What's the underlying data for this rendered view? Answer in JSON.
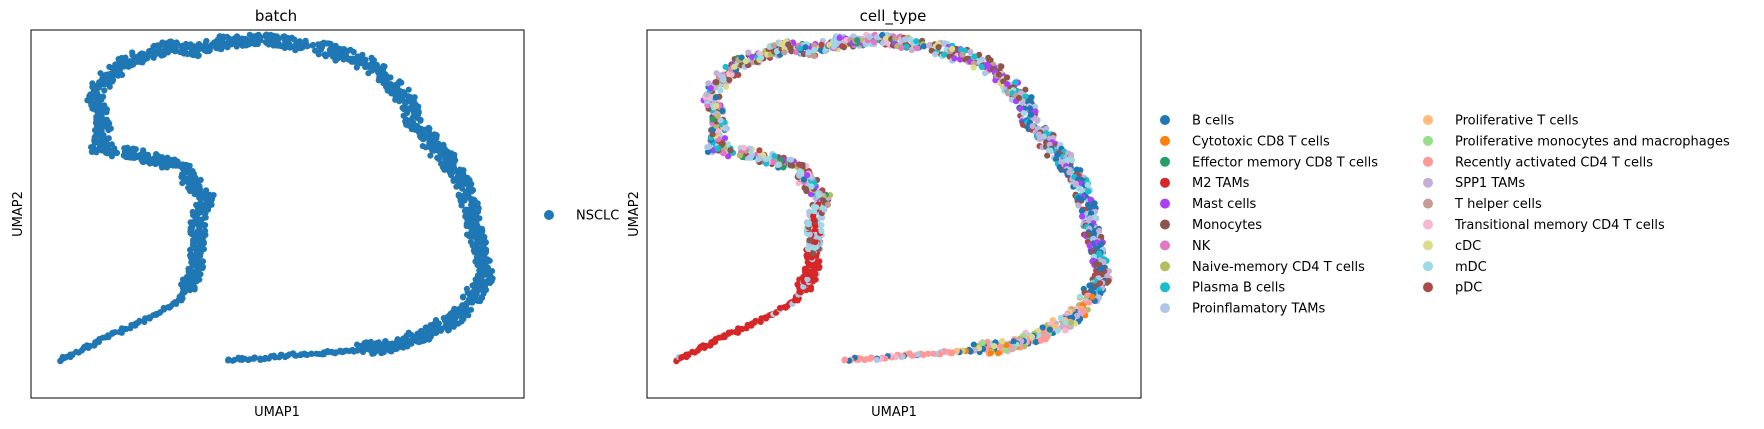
{
  "chart_data": [
    {
      "type": "scatter",
      "title": "batch",
      "xlabel": "UMAP1",
      "ylabel": "UMAP2",
      "legend_placement": "right",
      "xlim": [
        -9,
        9
      ],
      "ylim": [
        -9,
        9
      ],
      "grid": false,
      "series": [
        {
          "name": "NSCLC",
          "color": "#1f77b4"
        }
      ],
      "shape": {
        "left_branch": [
          [
            -8.0,
            -7.2
          ],
          [
            -6.5,
            -6.2
          ],
          [
            -5.0,
            -5.3
          ],
          [
            -3.6,
            -4.3
          ],
          [
            -3.0,
            -3.0
          ],
          [
            -2.9,
            -1.5
          ],
          [
            -2.9,
            -0.2
          ],
          [
            -2.6,
            0.7
          ],
          [
            -3.2,
            1.6
          ],
          [
            -3.5,
            2.3
          ],
          [
            -5.2,
            2.9
          ],
          [
            -6.6,
            3.3
          ],
          [
            -6.3,
            4.4
          ],
          [
            -6.7,
            5.5
          ],
          [
            -6.4,
            6.5
          ],
          [
            -5.6,
            7.3
          ],
          [
            -4.8,
            7.8
          ],
          [
            -3.9,
            8.2
          ],
          [
            -3.0,
            8.0
          ],
          [
            -2.0,
            8.4
          ],
          [
            -1.0,
            8.5
          ],
          [
            0.0,
            8.5
          ],
          [
            0.9,
            8.2
          ]
        ],
        "right_branch": [
          [
            1.5,
            8.2
          ],
          [
            2.4,
            7.8
          ],
          [
            3.3,
            7.4
          ],
          [
            4.2,
            6.4
          ],
          [
            4.8,
            5.5
          ],
          [
            5.0,
            4.4
          ],
          [
            5.6,
            3.5
          ],
          [
            6.3,
            2.4
          ],
          [
            6.8,
            1.6
          ],
          [
            7.0,
            0.6
          ],
          [
            7.2,
            -0.7
          ],
          [
            7.5,
            -2.3
          ],
          [
            7.6,
            -3.1
          ],
          [
            7.2,
            -3.9
          ],
          [
            6.8,
            -4.7
          ],
          [
            6.3,
            -5.3
          ],
          [
            5.4,
            -5.9
          ],
          [
            4.3,
            -6.4
          ],
          [
            2.5,
            -6.7
          ],
          [
            0.5,
            -6.9
          ],
          [
            -1.0,
            -7.1
          ],
          [
            -1.8,
            -7.1
          ]
        ]
      }
    },
    {
      "type": "scatter",
      "title": "cell_type",
      "xlabel": "UMAP1",
      "ylabel": "UMAP2",
      "legend_placement": "right",
      "legend_columns": 2,
      "xlim": [
        -9,
        9
      ],
      "ylim": [
        -9,
        9
      ],
      "grid": false,
      "series": [
        {
          "name": "B cells",
          "color": "#1f77b4"
        },
        {
          "name": "Cytotoxic CD8 T cells",
          "color": "#ff7f0e"
        },
        {
          "name": "Effector memory CD8 T cells",
          "color": "#279e68"
        },
        {
          "name": "M2 TAMs",
          "color": "#d62728"
        },
        {
          "name": "Mast cells",
          "color": "#aa40fc"
        },
        {
          "name": "Monocytes",
          "color": "#8c564b"
        },
        {
          "name": "NK",
          "color": "#e377c2"
        },
        {
          "name": "Naive-memory CD4 T cells",
          "color": "#b5bd61"
        },
        {
          "name": "Plasma B cells",
          "color": "#17becf"
        },
        {
          "name": "Proinflamatory TAMs",
          "color": "#aec7e8"
        },
        {
          "name": "Proliferative T cells",
          "color": "#ffbb78"
        },
        {
          "name": "Proliferative monocytes and macrophages",
          "color": "#98df8a"
        },
        {
          "name": "Recently activated CD4 T cells",
          "color": "#ff9896"
        },
        {
          "name": "SPP1 TAMs",
          "color": "#c5b0d5"
        },
        {
          "name": "T helper cells",
          "color": "#c49c94"
        },
        {
          "name": "Transitional memory CD4 T cells",
          "color": "#f7b6d2"
        },
        {
          "name": "cDC",
          "color": "#dbdb8d"
        },
        {
          "name": "mDC",
          "color": "#9edae5"
        },
        {
          "name": "pDC",
          "color": "#ad494a"
        }
      ]
    }
  ]
}
